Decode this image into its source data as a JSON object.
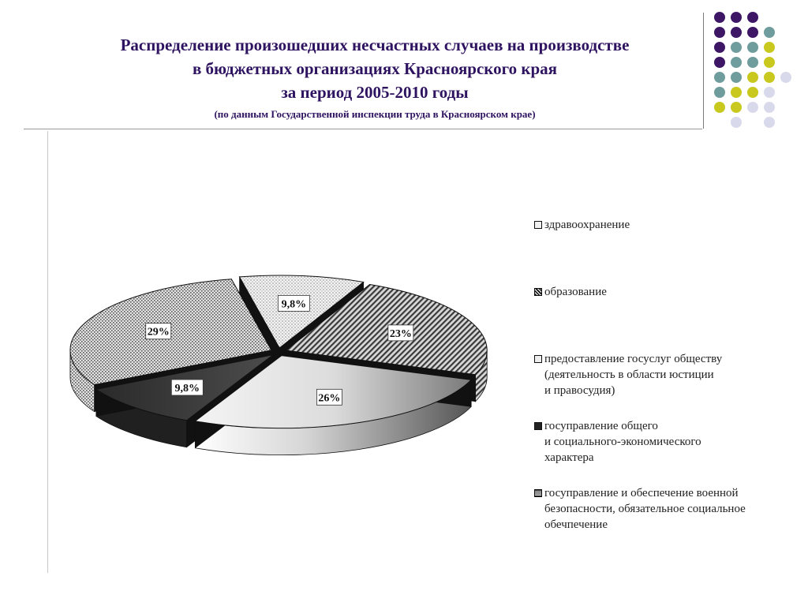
{
  "slide": {
    "title_lines": [
      "Распределение произошедших несчастных случаев на производстве",
      "в бюджетных организациях Красноярского края",
      "за период 2005-2010 годы"
    ],
    "source_note": "(по данным Государственной инспекции труда в Красноярском крае)"
  },
  "chart_data": {
    "type": "pie",
    "variant": "3d-exploded",
    "title": "",
    "unit": "%",
    "categories": [
      "здравоохранение",
      "образование",
      "предоставление госуслуг обществу (деятельность в области юстиции и правосудия)",
      "госуправление общего и социально-экономического характера",
      "госуправление и обеспечение военной безопасности, обязательное социальное обечпечение"
    ],
    "values": [
      9.8,
      23,
      26,
      9.8,
      29
    ],
    "data_labels": [
      "9,8%",
      "23%",
      "26%",
      "9,8%",
      "29%"
    ],
    "legend_lines": [
      [
        "здравоохранение"
      ],
      [
        "образование"
      ],
      [
        "предоставление госуслуг обществу",
        "(деятельность в области юстиции",
        "и правосудия)"
      ],
      [
        "госуправление общего",
        "и социального-экономического",
        "характера"
      ],
      [
        "госуправление и обеспечение военной",
        "безопасности, обязательное социальное",
        "обечпечение"
      ]
    ],
    "fills": [
      "dots-light",
      "diagonal-stripes",
      "light-gradient",
      "dark-gradient",
      "dense-dots"
    ],
    "legend_position": "right"
  },
  "colors": {
    "title": "#2e1360",
    "dot_purple": "#3d1766",
    "dot_teal": "#6f9c9c",
    "dot_olive": "#c8c81e",
    "dot_lavender": "#d9d9ec"
  },
  "decor": {
    "dot_grid": [
      [
        "purple",
        "purple",
        "purple",
        "",
        ""
      ],
      [
        "purple",
        "purple",
        "purple",
        "teal",
        ""
      ],
      [
        "purple",
        "teal",
        "teal",
        "olive",
        ""
      ],
      [
        "purple",
        "teal",
        "teal",
        "olive",
        ""
      ],
      [
        "teal",
        "teal",
        "olive",
        "olive",
        "lavender"
      ],
      [
        "teal",
        "olive",
        "olive",
        "lavender",
        ""
      ],
      [
        "olive",
        "olive",
        "lavender",
        "lavender",
        ""
      ],
      [
        "",
        "lavender",
        "",
        "lavender",
        ""
      ]
    ]
  }
}
